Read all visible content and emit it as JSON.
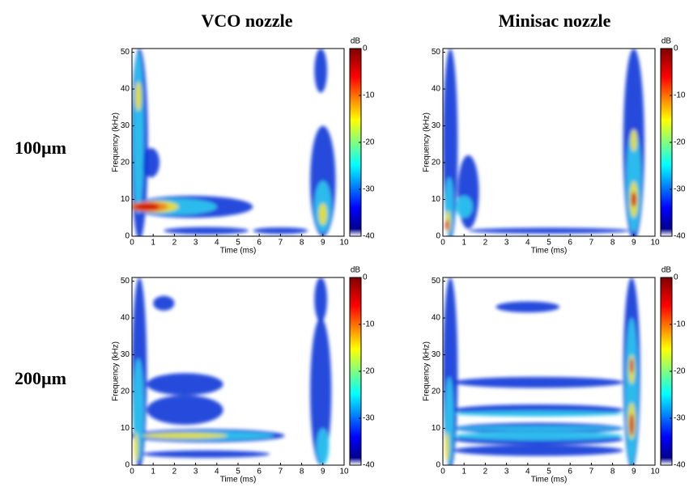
{
  "column_titles": [
    "VCO nozzle",
    "Minisac nozzle"
  ],
  "row_labels": [
    "100µm",
    "200µm"
  ],
  "chart_data": [
    {
      "type": "heatmap",
      "xlabel": "Time (ms)",
      "ylabel": "Frequency (kHz)",
      "xlim": [
        0,
        10
      ],
      "xticks": [
        0,
        1,
        2,
        3,
        4,
        5,
        6,
        7,
        8,
        9,
        10
      ],
      "ylim": [
        0,
        51
      ],
      "yticks": [
        0,
        10,
        20,
        30,
        40,
        50
      ],
      "colorbar": {
        "label": "dB",
        "lim": [
          -40,
          0
        ],
        "ticks": [
          -40,
          -30,
          -20,
          -10,
          0
        ]
      }
    },
    {
      "type": "heatmap",
      "xlabel": "Time (ms)",
      "ylabel": "Frequency (kHz)",
      "xlim": [
        0,
        10
      ],
      "xticks": [
        0,
        1,
        2,
        3,
        4,
        5,
        6,
        7,
        8,
        9,
        10
      ],
      "ylim": [
        0,
        51
      ],
      "yticks": [
        0,
        10,
        20,
        30,
        40,
        50
      ],
      "colorbar": {
        "label": "dB",
        "lim": [
          -40,
          0
        ],
        "ticks": [
          -40,
          -30,
          -20,
          -10,
          0
        ]
      }
    },
    {
      "type": "heatmap",
      "xlabel": "Time (ms)",
      "ylabel": "Frequency (kHz)",
      "xlim": [
        0,
        10
      ],
      "xticks": [
        0,
        1,
        2,
        3,
        4,
        5,
        6,
        7,
        8,
        9,
        10
      ],
      "ylim": [
        0,
        51
      ],
      "yticks": [
        0,
        10,
        20,
        30,
        40,
        50
      ],
      "colorbar": {
        "label": "dB",
        "lim": [
          -40,
          0
        ],
        "ticks": [
          -40,
          -30,
          -20,
          -10,
          0
        ]
      }
    },
    {
      "type": "heatmap",
      "xlabel": "Time (ms)",
      "ylabel": "Frequency (kHz)",
      "xlim": [
        0,
        10
      ],
      "xticks": [
        0,
        1,
        2,
        3,
        4,
        5,
        6,
        7,
        8,
        9,
        10
      ],
      "ylim": [
        0,
        51
      ],
      "yticks": [
        0,
        10,
        20,
        30,
        40,
        50
      ],
      "colorbar": {
        "label": "dB",
        "lim": [
          -40,
          0
        ],
        "ticks": [
          -40,
          -30,
          -20,
          -10,
          0
        ]
      }
    }
  ]
}
